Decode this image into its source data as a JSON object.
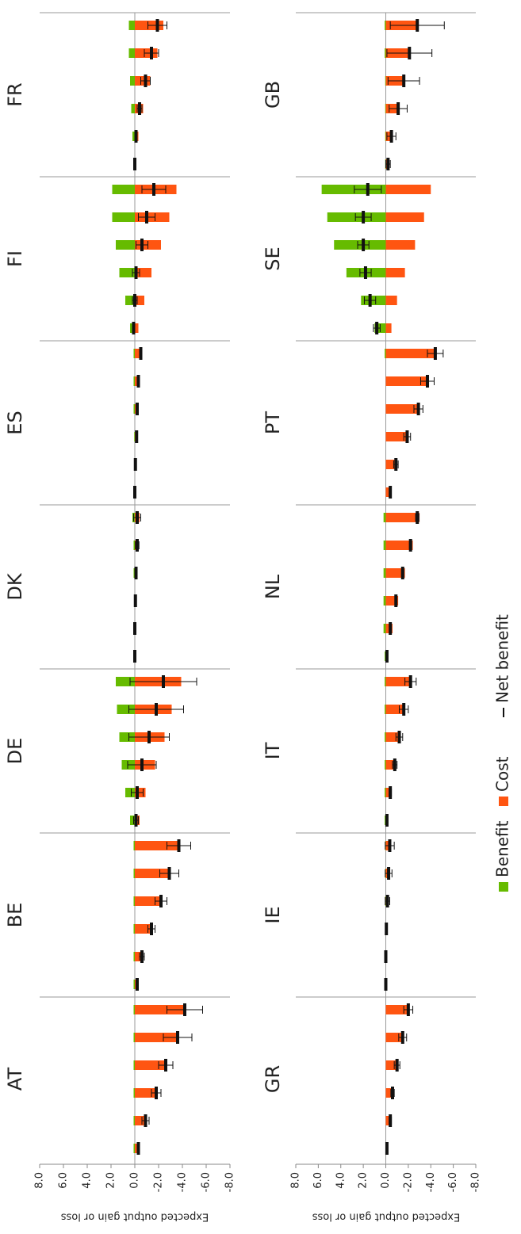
{
  "chart_data": {
    "type": "bar",
    "y_label": "Expected output gain or loss",
    "ylim": [
      -8,
      8
    ],
    "yticks": [
      {
        "value": 8,
        "label": "8.0"
      },
      {
        "value": 6,
        "label": "6.0"
      },
      {
        "value": 4,
        "label": "4.0"
      },
      {
        "value": 2,
        "label": "2.0"
      },
      {
        "value": 0,
        "label": "0.0"
      },
      {
        "value": -2,
        "label": "-2.0"
      },
      {
        "value": -4,
        "label": "-4.0"
      },
      {
        "value": -6,
        "label": "-6.0"
      },
      {
        "value": -8,
        "label": "-8.0"
      }
    ],
    "legend": [
      {
        "name": "Benefit",
        "color": "#66bb00"
      },
      {
        "name": "Cost",
        "color": "#ff5511"
      },
      {
        "name": "Net benefit",
        "color": "#111111"
      }
    ],
    "panels": [
      {
        "groups": [
          "AT",
          "BE",
          "DE",
          "DK",
          "ES",
          "FI",
          "FR"
        ],
        "series": [
          {
            "values": [
              [
                0.1,
                0.1,
                0.1,
                0.1,
                0.1,
                0.1
              ],
              [
                0.1,
                0.1,
                0.1,
                0.1,
                0.1,
                0.1
              ],
              [
                0.4,
                0.8,
                1.1,
                1.3,
                1.5,
                1.6
              ],
              [
                0,
                0,
                0.05,
                0.1,
                0.1,
                0.2
              ],
              [
                0,
                0.05,
                0.05,
                0.1,
                0.1,
                0.1
              ],
              [
                0.4,
                0.8,
                1.3,
                1.6,
                1.9,
                1.9
              ],
              [
                0.1,
                0.2,
                0.3,
                0.4,
                0.5,
                0.5
              ]
            ]
          },
          {
            "values": [
              [
                -0.4,
                -1.0,
                -1.9,
                -2.7,
                -3.7,
                -4.3
              ],
              [
                -0.3,
                -0.7,
                -1.5,
                -2.3,
                -3.0,
                -3.8
              ],
              [
                -0.4,
                -0.9,
                -1.7,
                -2.5,
                -3.1,
                -3.9
              ],
              [
                0,
                0,
                -0.1,
                -0.2,
                -0.3,
                -0.4
              ],
              [
                0,
                -0.1,
                -0.2,
                -0.3,
                -0.4,
                -0.6
              ],
              [
                -0.3,
                -0.8,
                -1.4,
                -2.2,
                -2.9,
                -3.5
              ],
              [
                -0.1,
                -0.3,
                -0.7,
                -1.3,
                -1.9,
                -2.4
              ]
            ]
          },
          {
            "values": [
              [
                -0.3,
                -0.9,
                -1.8,
                -2.6,
                -3.6,
                -4.2
              ],
              [
                -0.2,
                -0.6,
                -1.4,
                -2.2,
                -2.9,
                -3.7
              ],
              [
                -0.1,
                -0.2,
                -0.6,
                -1.2,
                -1.8,
                -2.4
              ],
              [
                0,
                0,
                -0.05,
                -0.1,
                -0.2,
                -0.2
              ],
              [
                0,
                -0.05,
                -0.15,
                -0.2,
                -0.3,
                -0.5
              ],
              [
                0.1,
                0,
                -0.1,
                -0.6,
                -1.0,
                -1.6
              ],
              [
                0,
                -0.1,
                -0.4,
                -0.9,
                -1.4,
                -1.9
              ]
            ],
            "errors": [
              [
                0.1,
                0.3,
                0.4,
                0.6,
                1.2,
                1.5
              ],
              [
                0.1,
                0.2,
                0.3,
                0.5,
                0.8,
                1.0
              ],
              [
                0.2,
                0.5,
                1.2,
                1.7,
                2.3,
                2.8
              ],
              [
                0,
                0,
                0.05,
                0.1,
                0.15,
                0.3
              ],
              [
                0,
                0,
                0.05,
                0.05,
                0.1,
                0.1
              ],
              [
                0.1,
                0.2,
                0.3,
                0.5,
                0.7,
                1.0
              ],
              [
                0.05,
                0.1,
                0.2,
                0.4,
                0.6,
                0.8
              ]
            ]
          }
        ]
      },
      {
        "groups": [
          "GR",
          "IE",
          "IT",
          "NL",
          "PT",
          "SE",
          "GB"
        ],
        "series": [
          {
            "values": [
              [
                0,
                0,
                0,
                0,
                0,
                0
              ],
              [
                0,
                0,
                0.05,
                0.05,
                0.05,
                0.05
              ],
              [
                0.1,
                0.1,
                0.1,
                0.1,
                0.1,
                0.1
              ],
              [
                0.1,
                0.2,
                0.2,
                0.2,
                0.2,
                0.2
              ],
              [
                0,
                0,
                0,
                0,
                0,
                0.1
              ],
              [
                1.0,
                2.2,
                3.5,
                4.6,
                5.2,
                5.7
              ],
              [
                0.05,
                0.05,
                0.05,
                0.05,
                0.1,
                0.1
              ]
            ]
          },
          {
            "values": [
              [
                -0.1,
                -0.4,
                -0.6,
                -1.0,
                -1.5,
                -2.0
              ],
              [
                0,
                0,
                -0.1,
                -0.2,
                -0.3,
                -0.4
              ],
              [
                -0.2,
                -0.5,
                -0.9,
                -1.3,
                -1.7,
                -2.3
              ],
              [
                -0.2,
                -0.6,
                -1.1,
                -1.7,
                -2.4,
                -3.0
              ],
              [
                -0.5,
                -0.9,
                -1.9,
                -2.9,
                -3.8,
                -4.5
              ],
              [
                -0.5,
                -1.0,
                -1.7,
                -2.6,
                -3.4,
                -4.0
              ],
              [
                -0.3,
                -0.6,
                -1.2,
                -1.7,
                -2.2,
                -2.9
              ]
            ]
          },
          {
            "values": [
              [
                -0.1,
                -0.4,
                -0.6,
                -1.0,
                -1.5,
                -2.0
              ],
              [
                0,
                0,
                -0.05,
                -0.15,
                -0.25,
                -0.35
              ],
              [
                -0.1,
                -0.4,
                -0.8,
                -1.2,
                -1.6,
                -2.2
              ],
              [
                -0.1,
                -0.4,
                -0.9,
                -1.5,
                -2.2,
                -2.8
              ],
              [
                -0.4,
                -0.9,
                -1.9,
                -2.9,
                -3.7,
                -4.4
              ],
              [
                0.8,
                1.4,
                1.8,
                2.0,
                2.0,
                1.6
              ],
              [
                -0.2,
                -0.5,
                -1.1,
                -1.6,
                -2.1,
                -2.8
              ]
            ],
            "errors": [
              [
                0,
                0.1,
                0.15,
                0.25,
                0.35,
                0.4
              ],
              [
                0,
                0,
                0.05,
                0.2,
                0.3,
                0.4
              ],
              [
                0,
                0.1,
                0.2,
                0.3,
                0.4,
                0.5
              ],
              [
                0,
                0.05,
                0.05,
                0.1,
                0.1,
                0.15
              ],
              [
                0.05,
                0.2,
                0.3,
                0.4,
                0.6,
                0.7
              ],
              [
                0.3,
                0.5,
                0.5,
                0.5,
                0.7,
                1.2
              ],
              [
                0.2,
                0.4,
                0.8,
                1.4,
                2.0,
                2.4
              ]
            ]
          }
        ]
      }
    ]
  }
}
